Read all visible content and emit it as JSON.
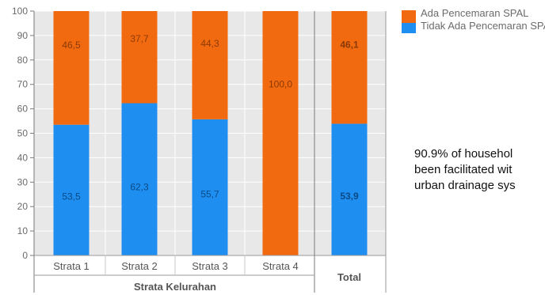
{
  "chart_data": {
    "type": "bar",
    "stacked": true,
    "orientation": "vertical",
    "categories": [
      "Strata 1",
      "Strata 2",
      "Strata 3",
      "Strata 4",
      "Total"
    ],
    "group_label": "Strata Kelurahan",
    "series": [
      {
        "name": "Tidak Ada Pencemaran SPAL",
        "color": "#1f8ef1",
        "values": [
          53.5,
          62.3,
          55.7,
          0,
          53.9
        ],
        "labels": [
          "53,5",
          "62,3",
          "55,7",
          "",
          "53,9"
        ]
      },
      {
        "name": "Ada Pencemaran SPAL",
        "color": "#f26a10",
        "values": [
          46.5,
          37.7,
          44.3,
          100.0,
          46.1
        ],
        "labels": [
          "46,5",
          "37,7",
          "44,3",
          "100,0",
          "46,1"
        ]
      }
    ],
    "bold_labels_category": "Total",
    "ylim": [
      0,
      100
    ],
    "yticks": [
      0,
      10,
      20,
      30,
      40,
      50,
      60,
      70,
      80,
      90,
      100
    ],
    "grid": true,
    "legend_position": "right"
  },
  "legend": {
    "items": [
      {
        "label": "Ada Pencemaran SPAL",
        "color": "#f26a10"
      },
      {
        "label": "Tidak Ada Pencemaran SPAL",
        "color": "#1f8ef1"
      }
    ]
  },
  "note": {
    "text": "90.9% of househol\nbeen facilitated wit\nurban drainage sys"
  }
}
